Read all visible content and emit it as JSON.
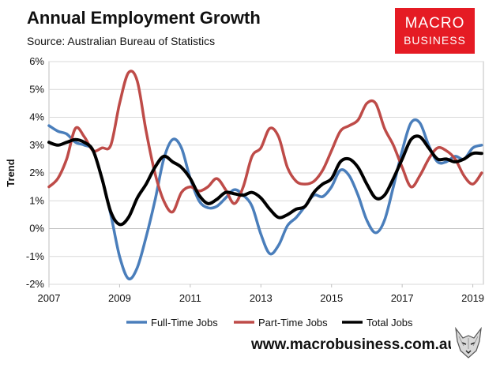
{
  "header": {
    "title": "Annual Employment Growth",
    "source": "Source: Australian Bureau of Statistics"
  },
  "logo": {
    "line1": "MACRO",
    "line2": "BUSINESS"
  },
  "footer": {
    "url": "www.macrobusiness.com.au",
    "mascot_icon": "wolf-head-icon"
  },
  "chart_data": {
    "type": "line",
    "title": "Annual Employment Growth",
    "ylabel": "Trend",
    "xlabel": "",
    "xlim": [
      2007,
      2019.3
    ],
    "ylim": [
      -2,
      6
    ],
    "yticks": [
      -2,
      -1,
      0,
      1,
      2,
      3,
      4,
      5,
      6
    ],
    "ytick_labels": [
      "-2%",
      "-1%",
      "0%",
      "1%",
      "2%",
      "3%",
      "4%",
      "5%",
      "6%"
    ],
    "xticks": [
      2007,
      2009,
      2011,
      2013,
      2015,
      2017,
      2019
    ],
    "xtick_labels": [
      "2007",
      "2009",
      "2011",
      "2013",
      "2015",
      "2017",
      "2019"
    ],
    "grid": true,
    "legend_position": "bottom",
    "series": [
      {
        "name": "Full-Time Jobs",
        "color": "#4a7ebb",
        "x": [
          2007.0,
          2007.25,
          2007.5,
          2007.75,
          2008.0,
          2008.25,
          2008.5,
          2008.75,
          2009.0,
          2009.25,
          2009.5,
          2009.75,
          2010.0,
          2010.25,
          2010.5,
          2010.75,
          2011.0,
          2011.25,
          2011.5,
          2011.75,
          2012.0,
          2012.25,
          2012.5,
          2012.75,
          2013.0,
          2013.25,
          2013.5,
          2013.75,
          2014.0,
          2014.25,
          2014.5,
          2014.75,
          2015.0,
          2015.25,
          2015.5,
          2015.75,
          2016.0,
          2016.25,
          2016.5,
          2016.75,
          2017.0,
          2017.25,
          2017.5,
          2017.75,
          2018.0,
          2018.25,
          2018.5,
          2018.75,
          2019.0,
          2019.25
        ],
        "y": [
          3.7,
          3.5,
          3.4,
          3.1,
          3.0,
          2.8,
          1.8,
          0.5,
          -1.0,
          -1.8,
          -1.4,
          -0.3,
          1.0,
          2.5,
          3.2,
          2.9,
          1.8,
          1.0,
          0.75,
          0.8,
          1.1,
          1.4,
          1.2,
          0.8,
          -0.2,
          -0.9,
          -0.6,
          0.1,
          0.4,
          0.8,
          1.2,
          1.15,
          1.5,
          2.1,
          1.9,
          1.2,
          0.3,
          -0.15,
          0.3,
          1.5,
          2.8,
          3.8,
          3.8,
          3.0,
          2.4,
          2.4,
          2.6,
          2.5,
          2.9,
          3.0
        ]
      },
      {
        "name": "Part-Time Jobs",
        "color": "#be4b48",
        "x": [
          2007.0,
          2007.25,
          2007.5,
          2007.75,
          2008.0,
          2008.25,
          2008.5,
          2008.75,
          2009.0,
          2009.25,
          2009.5,
          2009.75,
          2010.0,
          2010.25,
          2010.5,
          2010.75,
          2011.0,
          2011.25,
          2011.5,
          2011.75,
          2012.0,
          2012.25,
          2012.5,
          2012.75,
          2013.0,
          2013.25,
          2013.5,
          2013.75,
          2014.0,
          2014.25,
          2014.5,
          2014.75,
          2015.0,
          2015.25,
          2015.5,
          2015.75,
          2016.0,
          2016.25,
          2016.5,
          2016.75,
          2017.0,
          2017.25,
          2017.5,
          2017.75,
          2018.0,
          2018.25,
          2018.5,
          2018.75,
          2019.0,
          2019.25
        ],
        "y": [
          1.5,
          1.8,
          2.5,
          3.6,
          3.3,
          2.8,
          2.9,
          3.0,
          4.5,
          5.6,
          5.3,
          3.5,
          2.0,
          1.0,
          0.6,
          1.3,
          1.5,
          1.35,
          1.5,
          1.8,
          1.4,
          0.9,
          1.5,
          2.6,
          2.9,
          3.6,
          3.3,
          2.2,
          1.7,
          1.6,
          1.7,
          2.1,
          2.8,
          3.5,
          3.7,
          3.9,
          4.5,
          4.5,
          3.6,
          3.0,
          2.2,
          1.5,
          1.9,
          2.5,
          2.9,
          2.8,
          2.5,
          1.9,
          1.6,
          2.0
        ]
      },
      {
        "name": "Total Jobs",
        "color": "#000000",
        "x": [
          2007.0,
          2007.25,
          2007.5,
          2007.75,
          2008.0,
          2008.25,
          2008.5,
          2008.75,
          2009.0,
          2009.25,
          2009.5,
          2009.75,
          2010.0,
          2010.25,
          2010.5,
          2010.75,
          2011.0,
          2011.25,
          2011.5,
          2011.75,
          2012.0,
          2012.25,
          2012.5,
          2012.75,
          2013.0,
          2013.25,
          2013.5,
          2013.75,
          2014.0,
          2014.25,
          2014.5,
          2014.75,
          2015.0,
          2015.25,
          2015.5,
          2015.75,
          2016.0,
          2016.25,
          2016.5,
          2016.75,
          2017.0,
          2017.25,
          2017.5,
          2017.75,
          2018.0,
          2018.25,
          2018.5,
          2018.75,
          2019.0,
          2019.25
        ],
        "y": [
          3.1,
          3.0,
          3.1,
          3.2,
          3.1,
          2.8,
          1.8,
          0.6,
          0.15,
          0.4,
          1.1,
          1.6,
          2.2,
          2.6,
          2.4,
          2.2,
          1.8,
          1.2,
          0.9,
          1.05,
          1.3,
          1.25,
          1.2,
          1.3,
          1.1,
          0.7,
          0.4,
          0.5,
          0.7,
          0.8,
          1.3,
          1.6,
          1.8,
          2.4,
          2.5,
          2.2,
          1.6,
          1.1,
          1.2,
          1.8,
          2.5,
          3.2,
          3.3,
          2.9,
          2.5,
          2.5,
          2.4,
          2.5,
          2.7,
          2.7
        ]
      }
    ]
  }
}
